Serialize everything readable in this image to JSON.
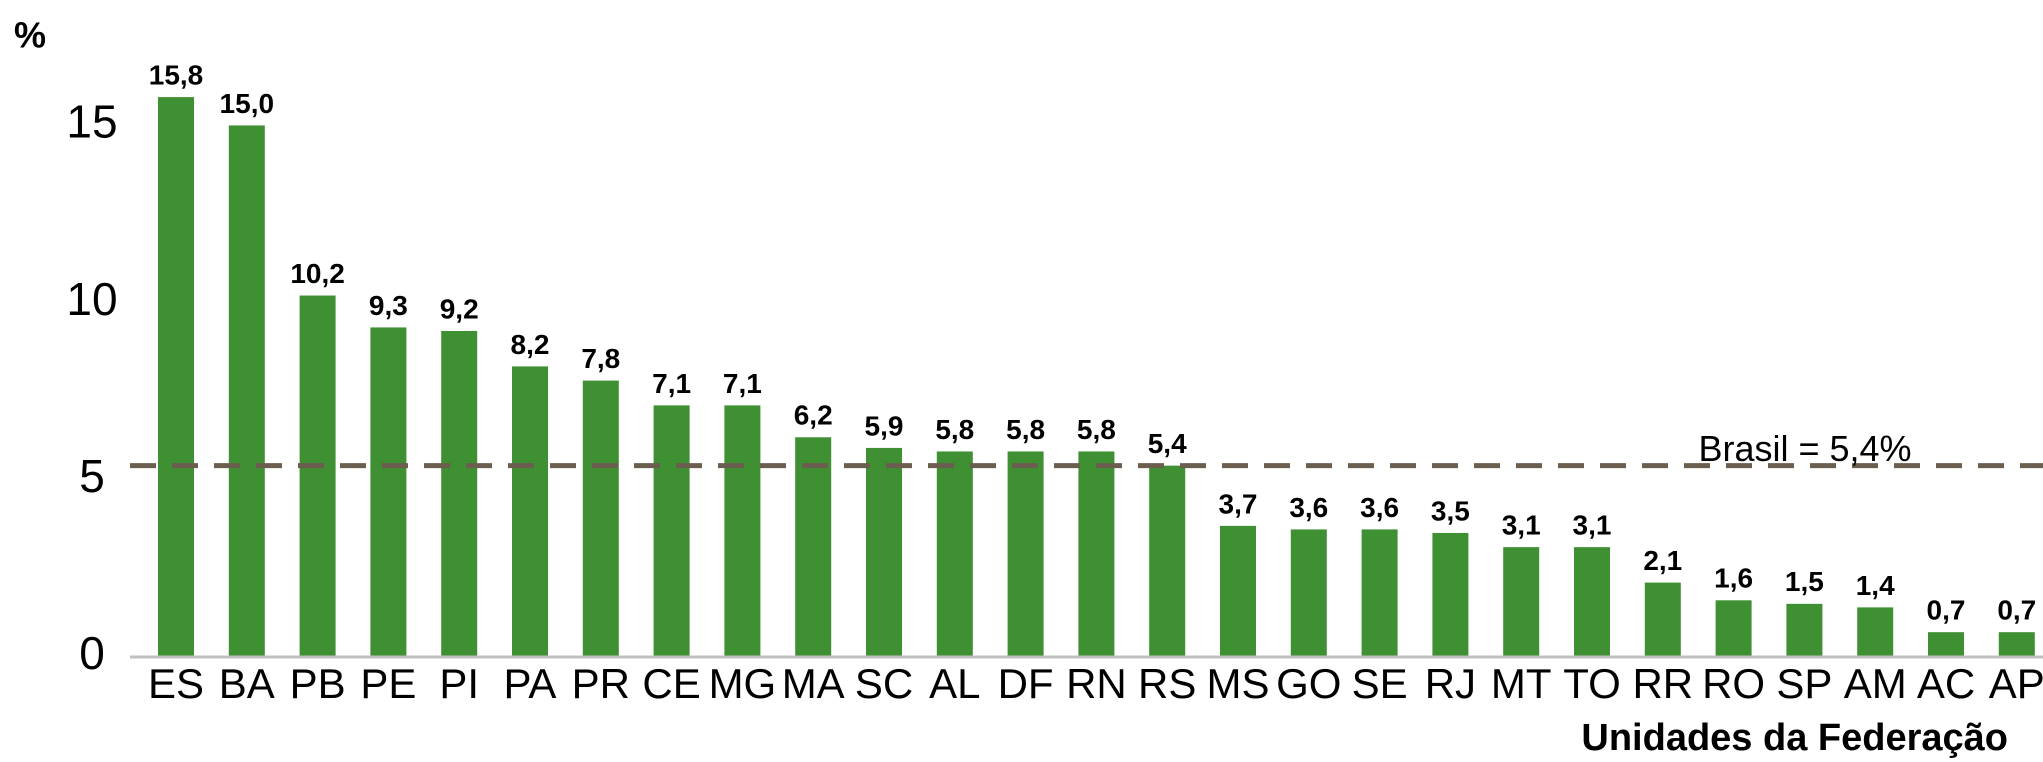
{
  "chart_data": {
    "type": "bar",
    "y_axis_label": "%",
    "x_axis_label": "Unidades da Federação",
    "categories": [
      "ES",
      "BA",
      "PB",
      "PE",
      "PI",
      "PA",
      "PR",
      "CE",
      "MG",
      "MA",
      "SC",
      "AL",
      "DF",
      "RN",
      "RS",
      "MS",
      "GO",
      "SE",
      "RJ",
      "MT",
      "TO",
      "RR",
      "RO",
      "SP",
      "AM",
      "AC",
      "AP"
    ],
    "values": [
      15.8,
      15.0,
      10.2,
      9.3,
      9.2,
      8.2,
      7.8,
      7.1,
      7.1,
      6.2,
      5.9,
      5.8,
      5.8,
      5.8,
      5.4,
      3.7,
      3.6,
      3.6,
      3.5,
      3.1,
      3.1,
      2.1,
      1.6,
      1.5,
      1.4,
      0.7,
      0.7
    ],
    "value_labels": [
      "15,8",
      "15,0",
      "10,2",
      "9,3",
      "9,2",
      "8,2",
      "7,8",
      "7,1",
      "7,1",
      "6,2",
      "5,9",
      "5,8",
      "5,8",
      "5,8",
      "5,4",
      "3,7",
      "3,6",
      "3,6",
      "3,5",
      "3,1",
      "3,1",
      "2,1",
      "1,6",
      "1,5",
      "1,4",
      "0,7",
      "0,7"
    ],
    "color": "#3f8f33",
    "ylim": [
      0,
      16
    ],
    "yticks": [
      0,
      5,
      10,
      15
    ],
    "grid": false,
    "reference_line": {
      "value": 5.4,
      "label": "Brasil = 5,4%",
      "color": "#6b5e4f"
    }
  }
}
